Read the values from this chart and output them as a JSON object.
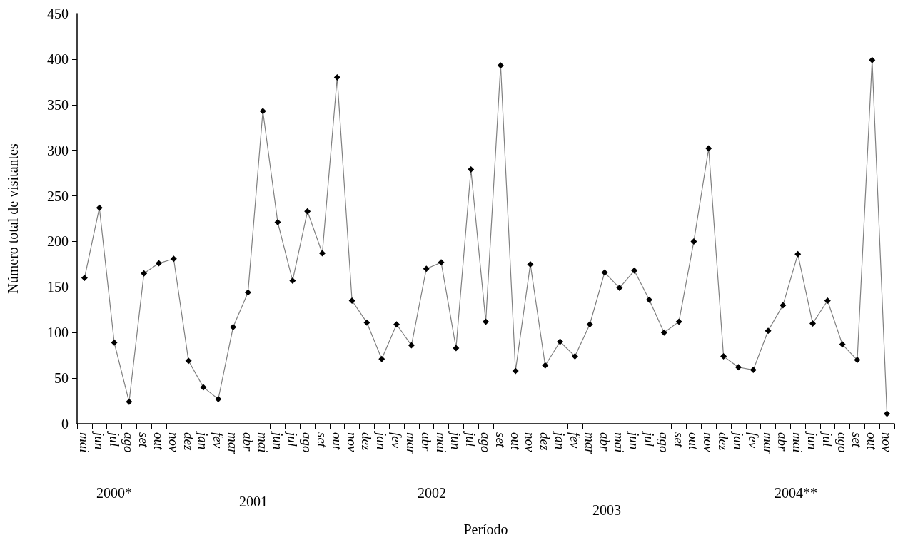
{
  "chart_data": {
    "type": "line",
    "xlabel": "Período",
    "ylabel": "Número total de visitantes",
    "categories": [
      "mai",
      "jun",
      "jul",
      "ago",
      "set",
      "out",
      "nov",
      "dez",
      "jan",
      "fev",
      "mar",
      "abr",
      "mai",
      "jun",
      "jul",
      "ago",
      "set",
      "out",
      "nov",
      "dez",
      "jan",
      "fev",
      "mar",
      "abr",
      "mai",
      "jun",
      "jul",
      "ago",
      "set",
      "out",
      "nov",
      "dez",
      "jan",
      "fev",
      "mar",
      "abr",
      "mai",
      "jun",
      "jul",
      "ago",
      "set",
      "out",
      "nov",
      "dez",
      "jan",
      "fev",
      "mar",
      "abr",
      "mai",
      "jun",
      "jul",
      "ago",
      "set",
      "out",
      "nov"
    ],
    "series": [
      {
        "color": "#000000",
        "values": [
          160,
          237,
          89,
          24,
          165,
          176,
          181,
          69,
          40,
          27,
          106,
          144,
          343,
          221,
          157,
          233,
          187,
          380,
          135,
          111,
          71,
          109,
          86,
          170,
          177,
          83,
          279,
          112,
          393,
          58,
          175,
          64,
          90,
          74,
          109,
          166,
          149,
          168,
          136,
          100,
          112,
          200,
          302,
          74,
          62,
          59,
          102,
          130,
          186,
          110,
          135,
          87,
          70,
          399,
          11
        ]
      }
    ],
    "ylim": [
      0,
      450
    ],
    "yticks": [
      0,
      50,
      100,
      150,
      200,
      250,
      300,
      350,
      400,
      450
    ],
    "annotations": [
      "2000*",
      "2001",
      "2002",
      "2003",
      "2004**"
    ],
    "marker": "diamond",
    "line_style": "solid",
    "grid": false
  }
}
